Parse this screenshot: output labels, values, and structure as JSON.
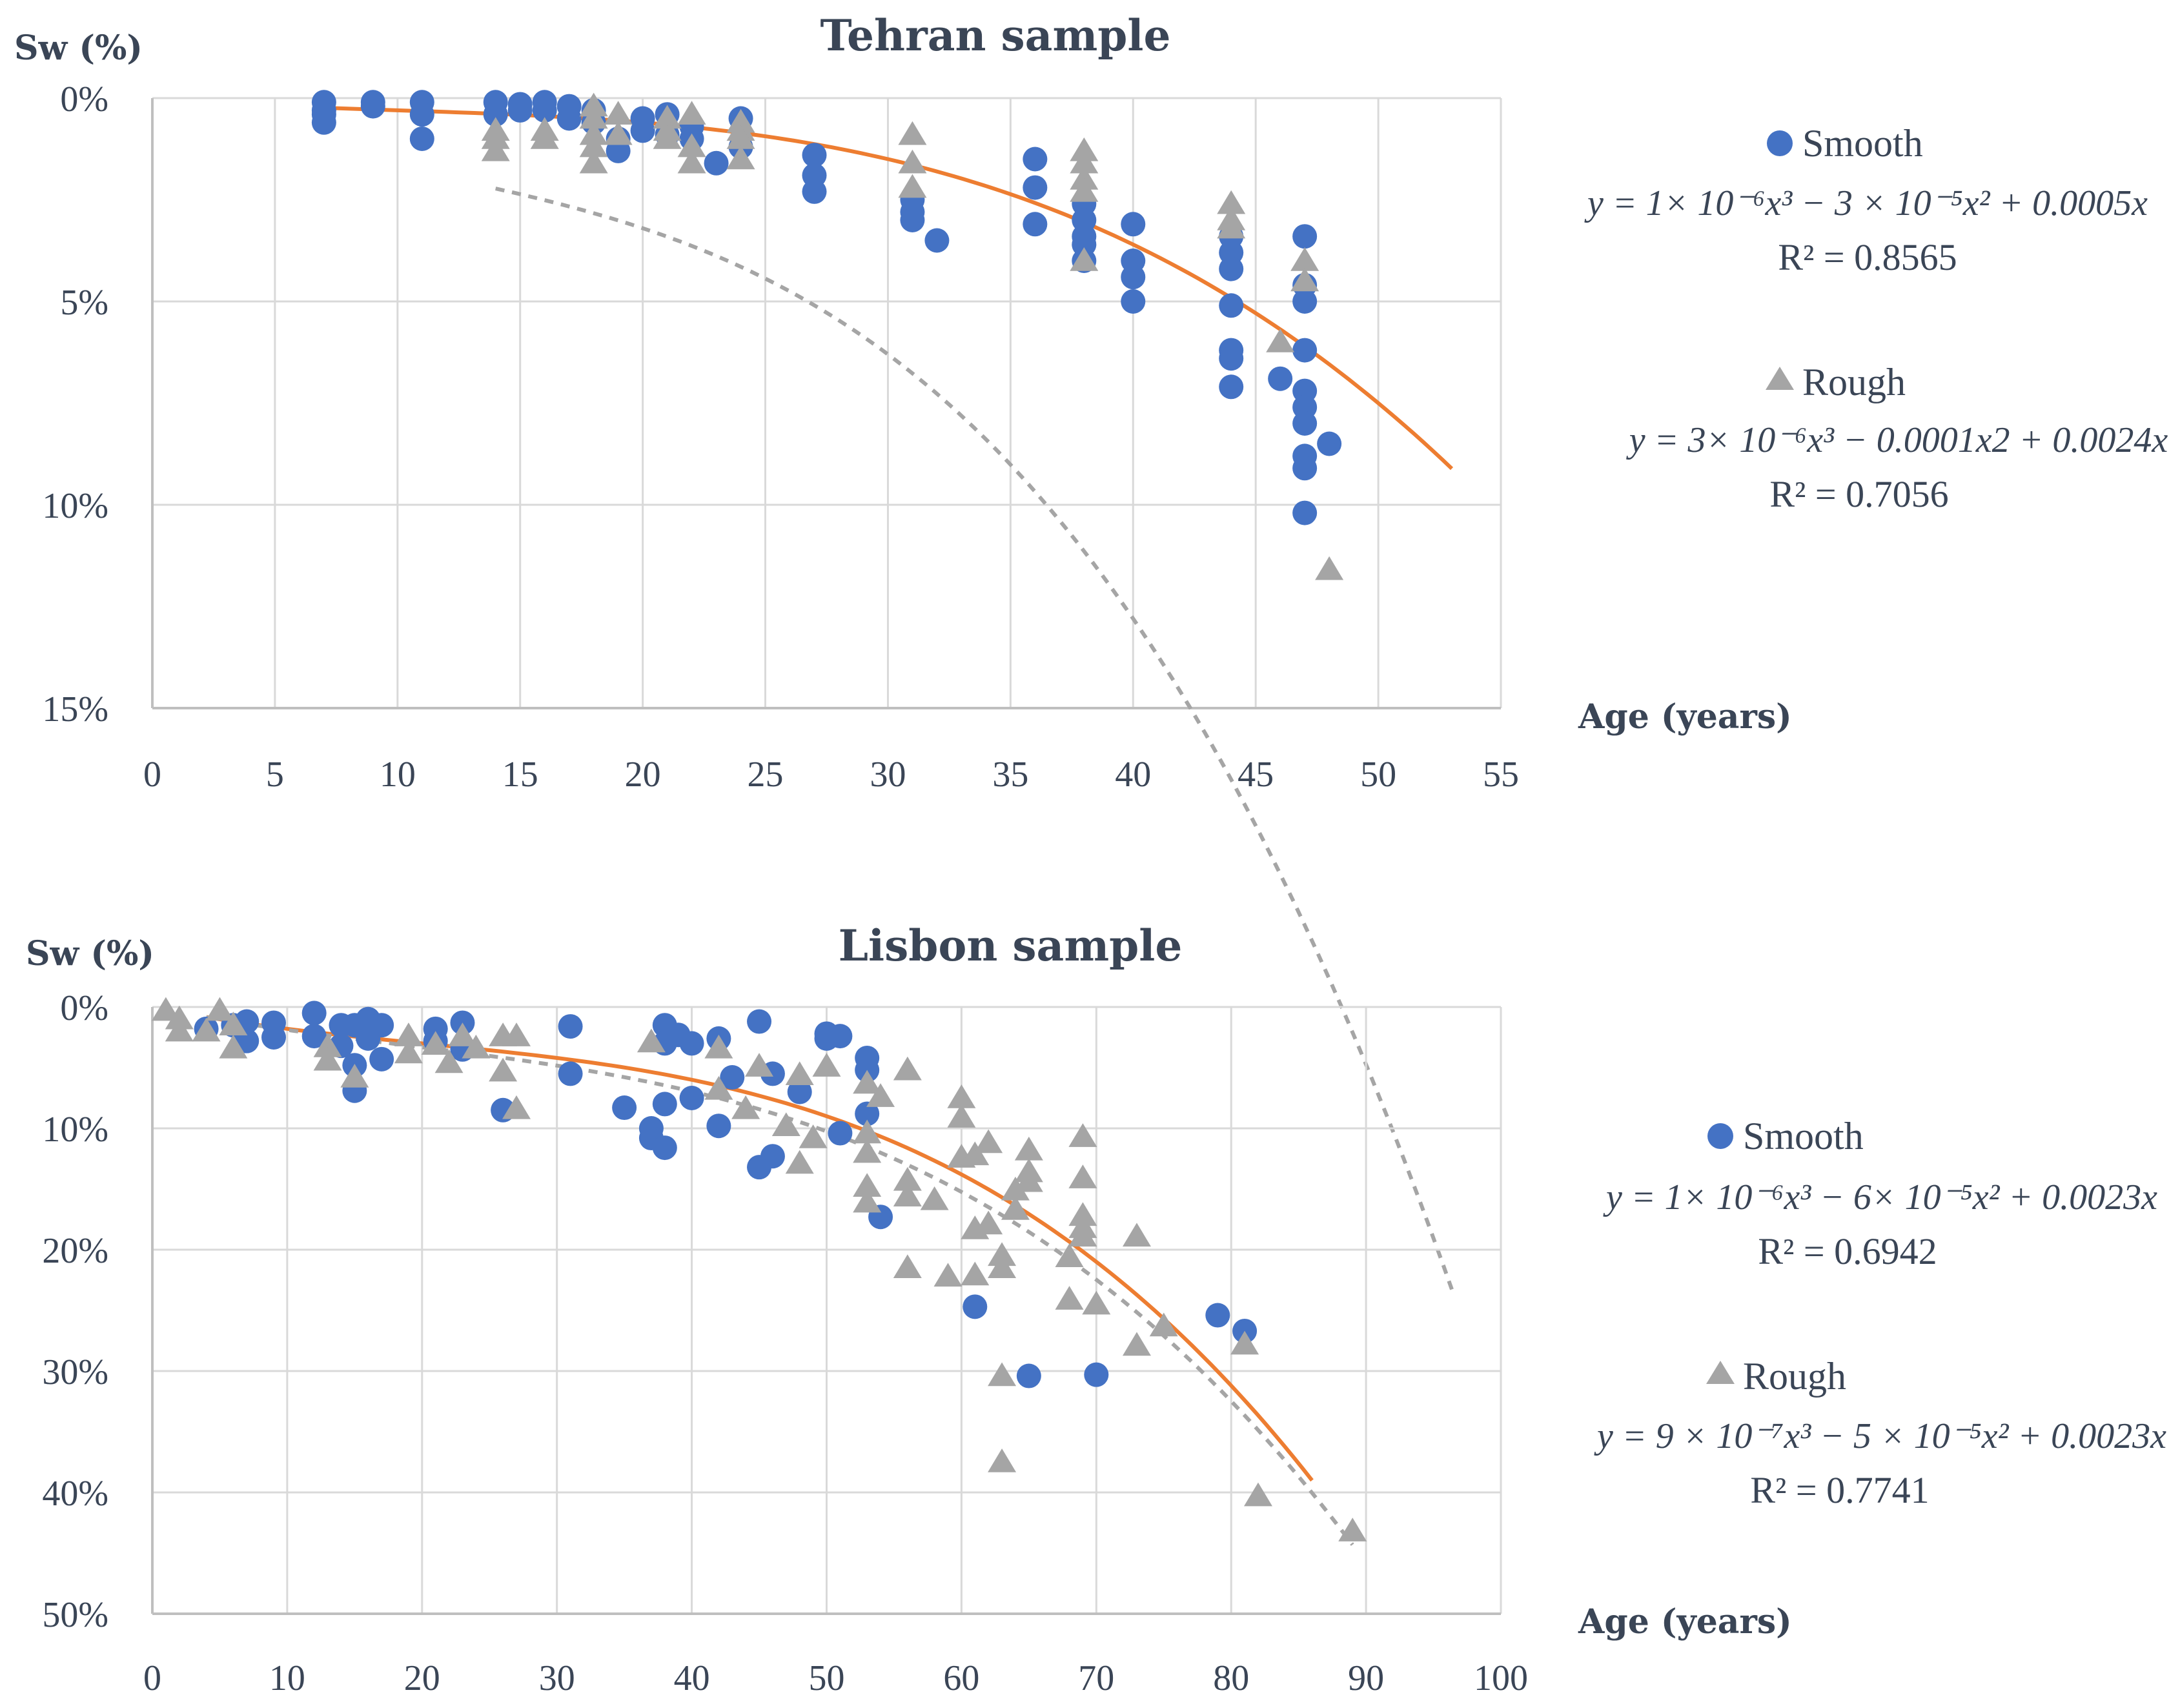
{
  "colors": {
    "smooth": "#4472c4",
    "rough": "#a5a5a5",
    "smooth_trend": "#ed7d31",
    "rough_trend": "#a5a5a5",
    "grid": "#d9d9d9",
    "axis": "#bfbfbf",
    "text": "#3a4556"
  },
  "chart_data": [
    {
      "type": "scatter",
      "title": "Tehran sample",
      "ylabel": "Sw (%)",
      "xlabel": "Age (years)",
      "xlim": [
        0,
        55
      ],
      "ylim": [
        0,
        15
      ],
      "y_inverted": true,
      "x_ticks": [
        "0",
        "5",
        "10",
        "15",
        "20",
        "25",
        "30",
        "35",
        "40",
        "45",
        "50",
        "55"
      ],
      "y_ticks": [
        "0%",
        "5%",
        "10%",
        "15%"
      ],
      "grid": true,
      "legend_position": "right",
      "series": [
        {
          "name": "Smooth",
          "marker": "circle",
          "points": [
            [
              7,
              0.1
            ],
            [
              7,
              0.3
            ],
            [
              7,
              0.4
            ],
            [
              7,
              0.6
            ],
            [
              9,
              0.1
            ],
            [
              9,
              0.2
            ],
            [
              11,
              0.1
            ],
            [
              11,
              0.4
            ],
            [
              11,
              1.0
            ],
            [
              14,
              0.1
            ],
            [
              14,
              0.4
            ],
            [
              15,
              0.15
            ],
            [
              15,
              0.3
            ],
            [
              16,
              0.1
            ],
            [
              16,
              0.3
            ],
            [
              17,
              0.2
            ],
            [
              17,
              0.5
            ],
            [
              18,
              0.3
            ],
            [
              18,
              0.6
            ],
            [
              19,
              1.0
            ],
            [
              19,
              1.3
            ],
            [
              20,
              0.5
            ],
            [
              20,
              0.8
            ],
            [
              21,
              0.4
            ],
            [
              21,
              0.9
            ],
            [
              22,
              0.7
            ],
            [
              22,
              1.0
            ],
            [
              23,
              1.6
            ],
            [
              24,
              0.5
            ],
            [
              24,
              1.2
            ],
            [
              27,
              1.4
            ],
            [
              27,
              1.9
            ],
            [
              27,
              2.3
            ],
            [
              31,
              2.5
            ],
            [
              31,
              2.8
            ],
            [
              31,
              3.0
            ],
            [
              32,
              3.5
            ],
            [
              36,
              1.5
            ],
            [
              36,
              2.2
            ],
            [
              36,
              3.1
            ],
            [
              38,
              2.6
            ],
            [
              38,
              3.0
            ],
            [
              38,
              3.4
            ],
            [
              38,
              3.6
            ],
            [
              38,
              4.0
            ],
            [
              40,
              3.1
            ],
            [
              40,
              4.0
            ],
            [
              40,
              4.4
            ],
            [
              40,
              5.0
            ],
            [
              44,
              3.4
            ],
            [
              44,
              3.8
            ],
            [
              44,
              4.2
            ],
            [
              44,
              5.1
            ],
            [
              44,
              6.2
            ],
            [
              44,
              6.4
            ],
            [
              44,
              7.1
            ],
            [
              46,
              6.9
            ],
            [
              47,
              3.4
            ],
            [
              47,
              4.6
            ],
            [
              47,
              5.0
            ],
            [
              47,
              6.2
            ],
            [
              47,
              7.2
            ],
            [
              47,
              7.6
            ],
            [
              47,
              8.0
            ],
            [
              47,
              8.8
            ],
            [
              47,
              9.1
            ],
            [
              47,
              10.2
            ],
            [
              48,
              8.5
            ]
          ]
        },
        {
          "name": "Rough",
          "marker": "triangle",
          "points": [
            [
              14,
              0.8
            ],
            [
              14,
              1.0
            ],
            [
              14,
              1.3
            ],
            [
              16,
              0.8
            ],
            [
              16,
              1.0
            ],
            [
              18,
              0.2
            ],
            [
              18,
              0.5
            ],
            [
              18,
              0.9
            ],
            [
              18,
              1.2
            ],
            [
              18,
              1.6
            ],
            [
              19,
              0.4
            ],
            [
              19,
              0.9
            ],
            [
              21,
              0.5
            ],
            [
              21,
              0.8
            ],
            [
              21,
              1.0
            ],
            [
              22,
              0.4
            ],
            [
              22,
              1.2
            ],
            [
              22,
              1.6
            ],
            [
              24,
              0.6
            ],
            [
              24,
              0.8
            ],
            [
              24,
              1.0
            ],
            [
              24,
              1.5
            ],
            [
              31,
              0.9
            ],
            [
              31,
              1.6
            ],
            [
              31,
              2.2
            ],
            [
              38,
              1.3
            ],
            [
              38,
              1.6
            ],
            [
              38,
              2.0
            ],
            [
              38,
              2.3
            ],
            [
              38,
              4.0
            ],
            [
              44,
              2.6
            ],
            [
              44,
              3.0
            ],
            [
              44,
              3.2
            ],
            [
              46,
              6.0
            ],
            [
              47,
              4.0
            ],
            [
              47,
              4.5
            ],
            [
              48,
              11.6
            ]
          ]
        }
      ],
      "trendlines": [
        {
          "series": "Smooth",
          "style": "solid",
          "equation": "y = 1× 10⁻⁶x³ − 3 × 10⁻⁵x² + 0.0005x",
          "r2": "R² = 0.8565",
          "x_range": [
            7,
            53
          ],
          "coef": [
            1e-06,
            -3e-05,
            0.0005,
            0
          ]
        },
        {
          "series": "Rough",
          "style": "dashed",
          "equation": "y = 3× 10⁻⁶x³ − 0.0001x2 + 0.0024x",
          "r2": "R² = 0.7056",
          "x_range": [
            14,
            53
          ],
          "coef": [
            3e-06,
            -0.0001,
            0.0024,
            0
          ]
        }
      ]
    },
    {
      "type": "scatter",
      "title": "Lisbon sample",
      "ylabel": "Sw (%)",
      "xlabel": "Age (years)",
      "xlim": [
        0,
        100
      ],
      "ylim": [
        0,
        50
      ],
      "y_inverted": true,
      "x_ticks": [
        "0",
        "10",
        "20",
        "30",
        "40",
        "50",
        "60",
        "70",
        "80",
        "90",
        "100"
      ],
      "y_ticks": [
        "0%",
        "10%",
        "20%",
        "30%",
        "40%",
        "50%"
      ],
      "grid": true,
      "legend_position": "right",
      "series": [
        {
          "name": "Smooth",
          "marker": "circle",
          "points": [
            [
              4,
              1.8
            ],
            [
              6,
              1.5
            ],
            [
              7,
              1.2
            ],
            [
              7,
              2.8
            ],
            [
              9,
              1.3
            ],
            [
              9,
              2.5
            ],
            [
              12,
              0.5
            ],
            [
              12,
              2.4
            ],
            [
              14,
              1.5
            ],
            [
              14,
              3.2
            ],
            [
              15,
              1.5
            ],
            [
              15,
              4.8
            ],
            [
              15,
              6.9
            ],
            [
              16,
              1.0
            ],
            [
              16,
              2.6
            ],
            [
              17,
              1.5
            ],
            [
              17,
              4.3
            ],
            [
              21,
              1.8
            ],
            [
              21,
              2.8
            ],
            [
              23,
              1.3
            ],
            [
              23,
              3.5
            ],
            [
              26,
              8.5
            ],
            [
              31,
              1.6
            ],
            [
              31,
              5.5
            ],
            [
              35,
              8.3
            ],
            [
              37,
              10.0
            ],
            [
              37,
              10.8
            ],
            [
              38,
              1.5
            ],
            [
              38,
              3.0
            ],
            [
              38,
              8.0
            ],
            [
              38,
              11.6
            ],
            [
              39,
              2.3
            ],
            [
              40,
              3.0
            ],
            [
              40,
              7.5
            ],
            [
              42,
              2.6
            ],
            [
              42,
              9.8
            ],
            [
              43,
              5.8
            ],
            [
              45,
              1.2
            ],
            [
              45,
              13.2
            ],
            [
              46,
              5.5
            ],
            [
              46,
              12.3
            ],
            [
              48,
              7.0
            ],
            [
              50,
              2.2
            ],
            [
              50,
              2.6
            ],
            [
              51,
              2.4
            ],
            [
              51,
              10.4
            ],
            [
              53,
              4.2
            ],
            [
              53,
              5.2
            ],
            [
              53,
              8.8
            ],
            [
              54,
              17.3
            ],
            [
              61,
              24.7
            ],
            [
              65,
              30.4
            ],
            [
              70,
              30.3
            ],
            [
              79,
              25.4
            ],
            [
              81,
              26.7
            ]
          ]
        },
        {
          "name": "Rough",
          "marker": "triangle",
          "points": [
            [
              1,
              0.3
            ],
            [
              2,
              1.0
            ],
            [
              2,
              2.0
            ],
            [
              4,
              2.0
            ],
            [
              5,
              0.3
            ],
            [
              6,
              1.5
            ],
            [
              6,
              3.4
            ],
            [
              13,
              3.3
            ],
            [
              13,
              4.4
            ],
            [
              15,
              5.8
            ],
            [
              19,
              2.4
            ],
            [
              19,
              3.8
            ],
            [
              21,
              3.1
            ],
            [
              22,
              4.6
            ],
            [
              23,
              2.4
            ],
            [
              24,
              3.4
            ],
            [
              26,
              2.4
            ],
            [
              26,
              5.3
            ],
            [
              27,
              2.4
            ],
            [
              27,
              8.4
            ],
            [
              37,
              2.9
            ],
            [
              42,
              3.4
            ],
            [
              42,
              6.8
            ],
            [
              44,
              8.4
            ],
            [
              45,
              4.9
            ],
            [
              47,
              9.8
            ],
            [
              48,
              5.6
            ],
            [
              48,
              12.9
            ],
            [
              49,
              10.8
            ],
            [
              50,
              4.9
            ],
            [
              53,
              6.3
            ],
            [
              53,
              10.4
            ],
            [
              53,
              12.0
            ],
            [
              53,
              14.8
            ],
            [
              53,
              16.1
            ],
            [
              54,
              7.4
            ],
            [
              56,
              5.2
            ],
            [
              56,
              14.3
            ],
            [
              56,
              15.6
            ],
            [
              56,
              21.5
            ],
            [
              58,
              15.9
            ],
            [
              59,
              22.2
            ],
            [
              60,
              7.5
            ],
            [
              60,
              9.1
            ],
            [
              60,
              12.4
            ],
            [
              61,
              12.2
            ],
            [
              61,
              18.3
            ],
            [
              61,
              22.1
            ],
            [
              62,
              11.2
            ],
            [
              62,
              17.9
            ],
            [
              63,
              20.5
            ],
            [
              63,
              21.5
            ],
            [
              63,
              30.4
            ],
            [
              63,
              37.5
            ],
            [
              64,
              15.1
            ],
            [
              64,
              16.7
            ],
            [
              65,
              11.8
            ],
            [
              65,
              13.6
            ],
            [
              65,
              14.4
            ],
            [
              68,
              20.6
            ],
            [
              68,
              24.1
            ],
            [
              69,
              10.7
            ],
            [
              69,
              14.1
            ],
            [
              69,
              17.2
            ],
            [
              69,
              18.2
            ],
            [
              69,
              18.9
            ],
            [
              70,
              24.5
            ],
            [
              73,
              18.9
            ],
            [
              73,
              27.9
            ],
            [
              75,
              26.3
            ],
            [
              81,
              27.8
            ],
            [
              82,
              40.3
            ],
            [
              89,
              43.2
            ]
          ]
        }
      ],
      "trendlines": [
        {
          "series": "Smooth",
          "style": "solid",
          "equation": "y = 1× 10⁻⁶x³ − 6× 10⁻⁵x² + 0.0023x",
          "r2": "R² = 0.6942",
          "x_range": [
            4,
            86
          ],
          "coef": [
            1e-06,
            -6e-05,
            0.0023,
            0
          ]
        },
        {
          "series": "Rough",
          "style": "dashed",
          "equation": "y = 9 × 10⁻⁷x³ − 5 × 10⁻⁵x² + 0.0023x",
          "r2": "R² = 0.7741",
          "x_range": [
            4,
            89
          ],
          "coef": [
            9e-07,
            -5e-05,
            0.0023,
            0
          ]
        }
      ]
    }
  ]
}
